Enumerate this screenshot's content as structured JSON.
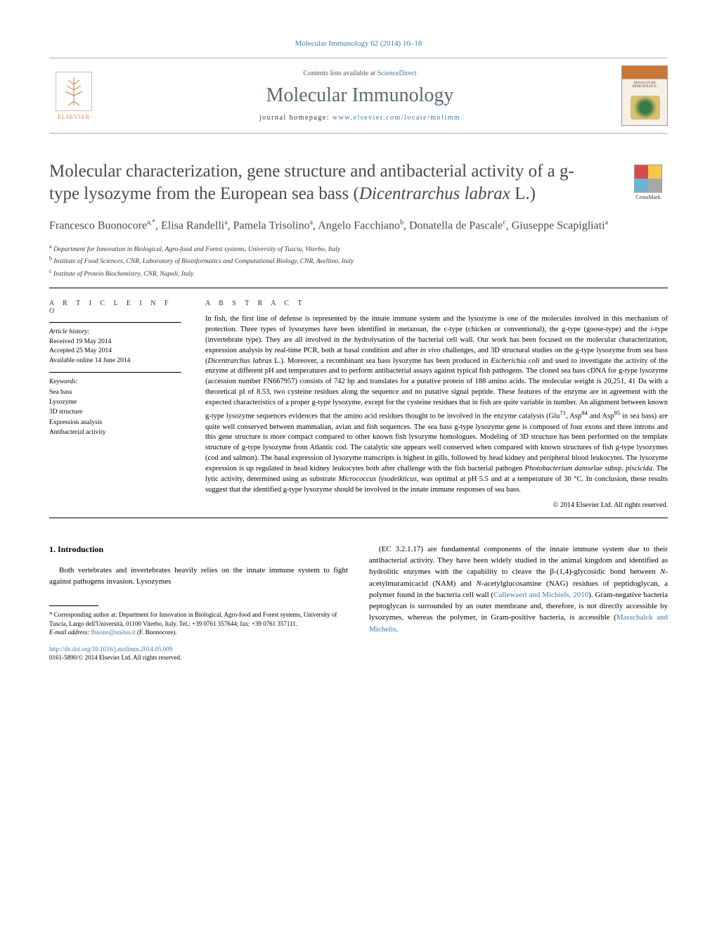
{
  "journal_ref": "Molecular Immunology 62 (2014) 10–18",
  "header": {
    "contents_pre": "Contents lists available at ",
    "contents_link": "ScienceDirect",
    "journal_name": "Molecular Immunology",
    "homepage_pre": "journal homepage: ",
    "homepage_link": "www.elsevier.com/locate/molimm",
    "elsevier_label": "ELSEVIER",
    "cover_title": "MOLECULAR IMMUNOLOGY"
  },
  "crossmark_label": "CrossMark",
  "article_title": "Molecular characterization, gene structure and antibacterial activity of a g-type lysozyme from the European sea bass (Dicentrarchus labrax L.)",
  "authors_html": "Francesco Buonocore<sup>a,*</sup>, Elisa Randelli<sup>a</sup>, Pamela Trisolino<sup>a</sup>, Angelo Facchiano<sup>b</sup>, Donatella de Pascale<sup>c</sup>, Giuseppe Scapigliati<sup>a</sup>",
  "affiliations": [
    {
      "sup": "a",
      "text": "Department for Innovation in Biological, Agro-food and Forest systems, University of Tuscia, Viterbo, Italy"
    },
    {
      "sup": "b",
      "text": "Institute of Food Sciences, CNR, Laboratory of Bioinformatics and Computational Biology, CNR, Avellino, Italy"
    },
    {
      "sup": "c",
      "text": "Institute of Protein Biochemistry, CNR, Napoli, Italy"
    }
  ],
  "article_info": {
    "label": "A R T I C L E   I N F O",
    "history_label": "Article history:",
    "received": "Received 19 May 2014",
    "accepted": "Accepted 25 May 2014",
    "online": "Available online 14 June 2014",
    "keywords_label": "Keywords:",
    "keywords": [
      "Sea bass",
      "Lysozyme",
      "3D structure",
      "Expression analysis",
      "Antibacterial activity"
    ]
  },
  "abstract": {
    "label": "A B S T R A C T",
    "text_html": "In fish, the first line of defense is represented by the innate immune system and the lysozyme is one of the molecules involved in this mechanism of protection. Three types of lysozymes have been identified in metazoan, the c-type (chicken or conventional), the g-type (goose-type) and the i-type (invertebrate type). They are all involved in the hydrolysation of the bacterial cell wall. Our work has been focused on the molecular characterization, expression analysis by real-time PCR, both at basal condition and after <em>in vivo</em> challenges, and 3D structural studies on the g-type lysozyme from sea bass (<em>Dicentrarchus labrax</em> L.). Moreover, a recombinant sea bass lysozyme has been produced in <em>Escherichia coli</em> and used to investigate the activity of the enzyme at different pH and temperatures and to perform antibacterial assays against typical fish pathogens. The cloned sea bass cDNA for g-type lysozyme (accession number FN667957) consists of 742 bp and translates for a putative protein of 188 amino acids. The molecular weight is 20,251, 41 Da with a theoretical pI of 8.53, two cysteine residues along the sequence and no putative signal peptide. These features of the enzyme are in agreement with the expected characteristics of a proper g-type lysozyme, except for the cysteine residues that in fish are quite variable in number. An alignment between known g-type lysozyme sequences evidences that the amino acid residues thought to be involved in the enzyme catalysis (Glu<sup>71</sup>, Asp<sup>84</sup> and Asp<sup>95</sup> in sea bass) are quite well conserved between mammalian, avian and fish sequences. The sea bass g-type lysozyme gene is composed of four exons and three introns and this gene structure is more compact compared to other known fish lysozyme homologues. Modeling of 3D structure has been performed on the template structure of g-type lysozyme from Atlantic cod. The catalytic site appears well conserved when compared with known structures of fish g-type lysozymes (cod and salmon). The basal expression of lysozyme transcripts is highest in gills, followed by head kidney and peripheral blood leukocytes. The lysozyme expression is up regulated in head kidney leukocytes both after challenge with the fish bacterial pathogen <em>Photobacterium damselae</em> subsp. <em>piscicida</em>. The lytic activity, determined using as substrate <em>Micrococcus lysodeikticus</em>, was optimal at pH 5.5 and at a temperature of 30 °C. In conclusion, these results suggest that the identified g-type lysozyme should be involved in the innate immune responses of sea bass.",
    "copyright": "© 2014 Elsevier Ltd. All rights reserved."
  },
  "body": {
    "intro_heading": "1. Introduction",
    "left_para": "Both vertebrates and invertebrates heavily relies on the innate immune system to fight against pathogens invasion. Lysozymes",
    "right_para_html": "(EC 3.2.1.17) are fundamental components of the innate immune system due to their antibacterial activity. They have been widely studied in the animal kingdom and identified as hydrolitic enzymes with the capability to cleave the β-(1,4)-glycosidic bond between <em>N</em>-acetylmuramicacid (NAM) and <em>N</em>-acetylglucosamine (NAG) residues of peptidoglycan, a polymer found in the bacteria cell wall (<span class=\"cite-link\">Callewaert and Michiels, 2010</span>). Gram-negative bacteria peptoglycan is surrounded by an outer membrane and, therefore, is not directly accessible by lysozymes, whereas the polymer, in Gram-positive bacteria, is accessible (<span class=\"cite-link\">Masschalck and Michelis,</span>"
  },
  "footnote": {
    "corr_html": "* Corresponding author at: Department for Innovation in Biological, Agro-food and Forest systems, University of Tuscia, Largo dell'Università, 01100 Viterbo, Italy. Tel.: +39 0761 357644; fax: +39 0761 357111.",
    "email_label": "E-mail address: ",
    "email": "fbuono@unitus.it",
    "email_suffix": " (F. Buonocore)."
  },
  "doi": {
    "link": "http://dx.doi.org/10.1016/j.molimm.2014.05.009",
    "issn_line": "0161-5890/© 2014 Elsevier Ltd. All rights reserved."
  },
  "colors": {
    "link": "#3a7aa8",
    "elsevier_orange": "#e67a2f",
    "title_gray": "#4a4a4a"
  }
}
